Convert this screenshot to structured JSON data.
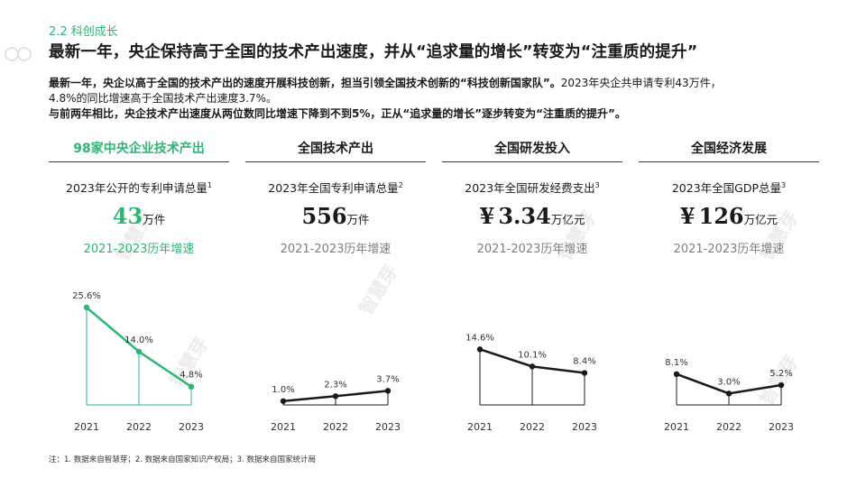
{
  "section_tag": "2.2 科创成长",
  "headline": "最新一年，央企保持高于全国的技术产出速度，并从“追求量的增长”转变为“注重质的提升”",
  "intro": {
    "line1_bold": "最新一年，央企以高于全国的技术产出的速度开展科技创新，担当引领全国技术创新的“科技创新国家队”。",
    "line1_rest": "2023年央企共申请专利43万件，",
    "line2": "4.8%的同比增速高于全国技术产出速度3.7%。",
    "line3_bold": "与前两年相比，央企技术产出速度从两位数同比增速下降到不到5%，正从“追求量的增长”逐步转变为“注重质的提升”。"
  },
  "watermark": "智慧芽",
  "colors": {
    "accent": "#2bb673",
    "dark": "#1a1a1a",
    "grey": "#7f7f7f"
  },
  "panels": [
    {
      "header": "98家中央企业技术产出",
      "metric_label": "2023年公开的专利申请总量",
      "note": "1",
      "currency": "",
      "value": "43",
      "unit": "万件",
      "growth_title": "2021-2023历年增速",
      "highlight": true
    },
    {
      "header": "全国技术产出",
      "metric_label": "2023年全国专利申请总量",
      "note": "2",
      "currency": "",
      "value": "556",
      "unit": "万件",
      "growth_title": "2021-2023历年增速",
      "highlight": false
    },
    {
      "header": "全国研发投入",
      "metric_label": "2023年全国研发经费支出",
      "note": "3",
      "currency": "¥",
      "value": "3.34",
      "unit": "万亿元",
      "growth_title": "2021-2023历年增速",
      "highlight": false
    },
    {
      "header": "全国经济发展",
      "metric_label": "2023年全国GDP总量",
      "note": "3",
      "currency": "¥",
      "value": "126",
      "unit": "万亿元",
      "growth_title": "2021-2023历年增速",
      "highlight": false
    }
  ],
  "chart_data": [
    {
      "type": "line",
      "x": [
        "2021",
        "2022",
        "2023"
      ],
      "values": [
        25.6,
        14.0,
        4.8
      ],
      "labels": [
        "25.6%",
        "14.0%",
        "4.8%"
      ],
      "unit": "%",
      "ylim": [
        0,
        27
      ],
      "color": "#2bb673"
    },
    {
      "type": "line",
      "x": [
        "2021",
        "2022",
        "2023"
      ],
      "values": [
        1.0,
        2.3,
        3.7
      ],
      "labels": [
        "1.0%",
        "2.3%",
        "3.7%"
      ],
      "unit": "%",
      "ylim": [
        0,
        27
      ],
      "color": "#1a1a1a"
    },
    {
      "type": "line",
      "x": [
        "2021",
        "2022",
        "2023"
      ],
      "values": [
        14.6,
        10.1,
        8.4
      ],
      "labels": [
        "14.6%",
        "10.1%",
        "8.4%"
      ],
      "unit": "%",
      "ylim": [
        0,
        27
      ],
      "color": "#1a1a1a"
    },
    {
      "type": "line",
      "x": [
        "2021",
        "2022",
        "2023"
      ],
      "values": [
        8.1,
        3.0,
        5.2
      ],
      "labels": [
        "8.1%",
        "3.0%",
        "5.2%"
      ],
      "unit": "%",
      "ylim": [
        0,
        27
      ],
      "color": "#1a1a1a"
    }
  ],
  "footnote": "注：1. 数据来自智慧芽；2. 数据来自国家知识产权局；3. 数据来自国家统计局"
}
